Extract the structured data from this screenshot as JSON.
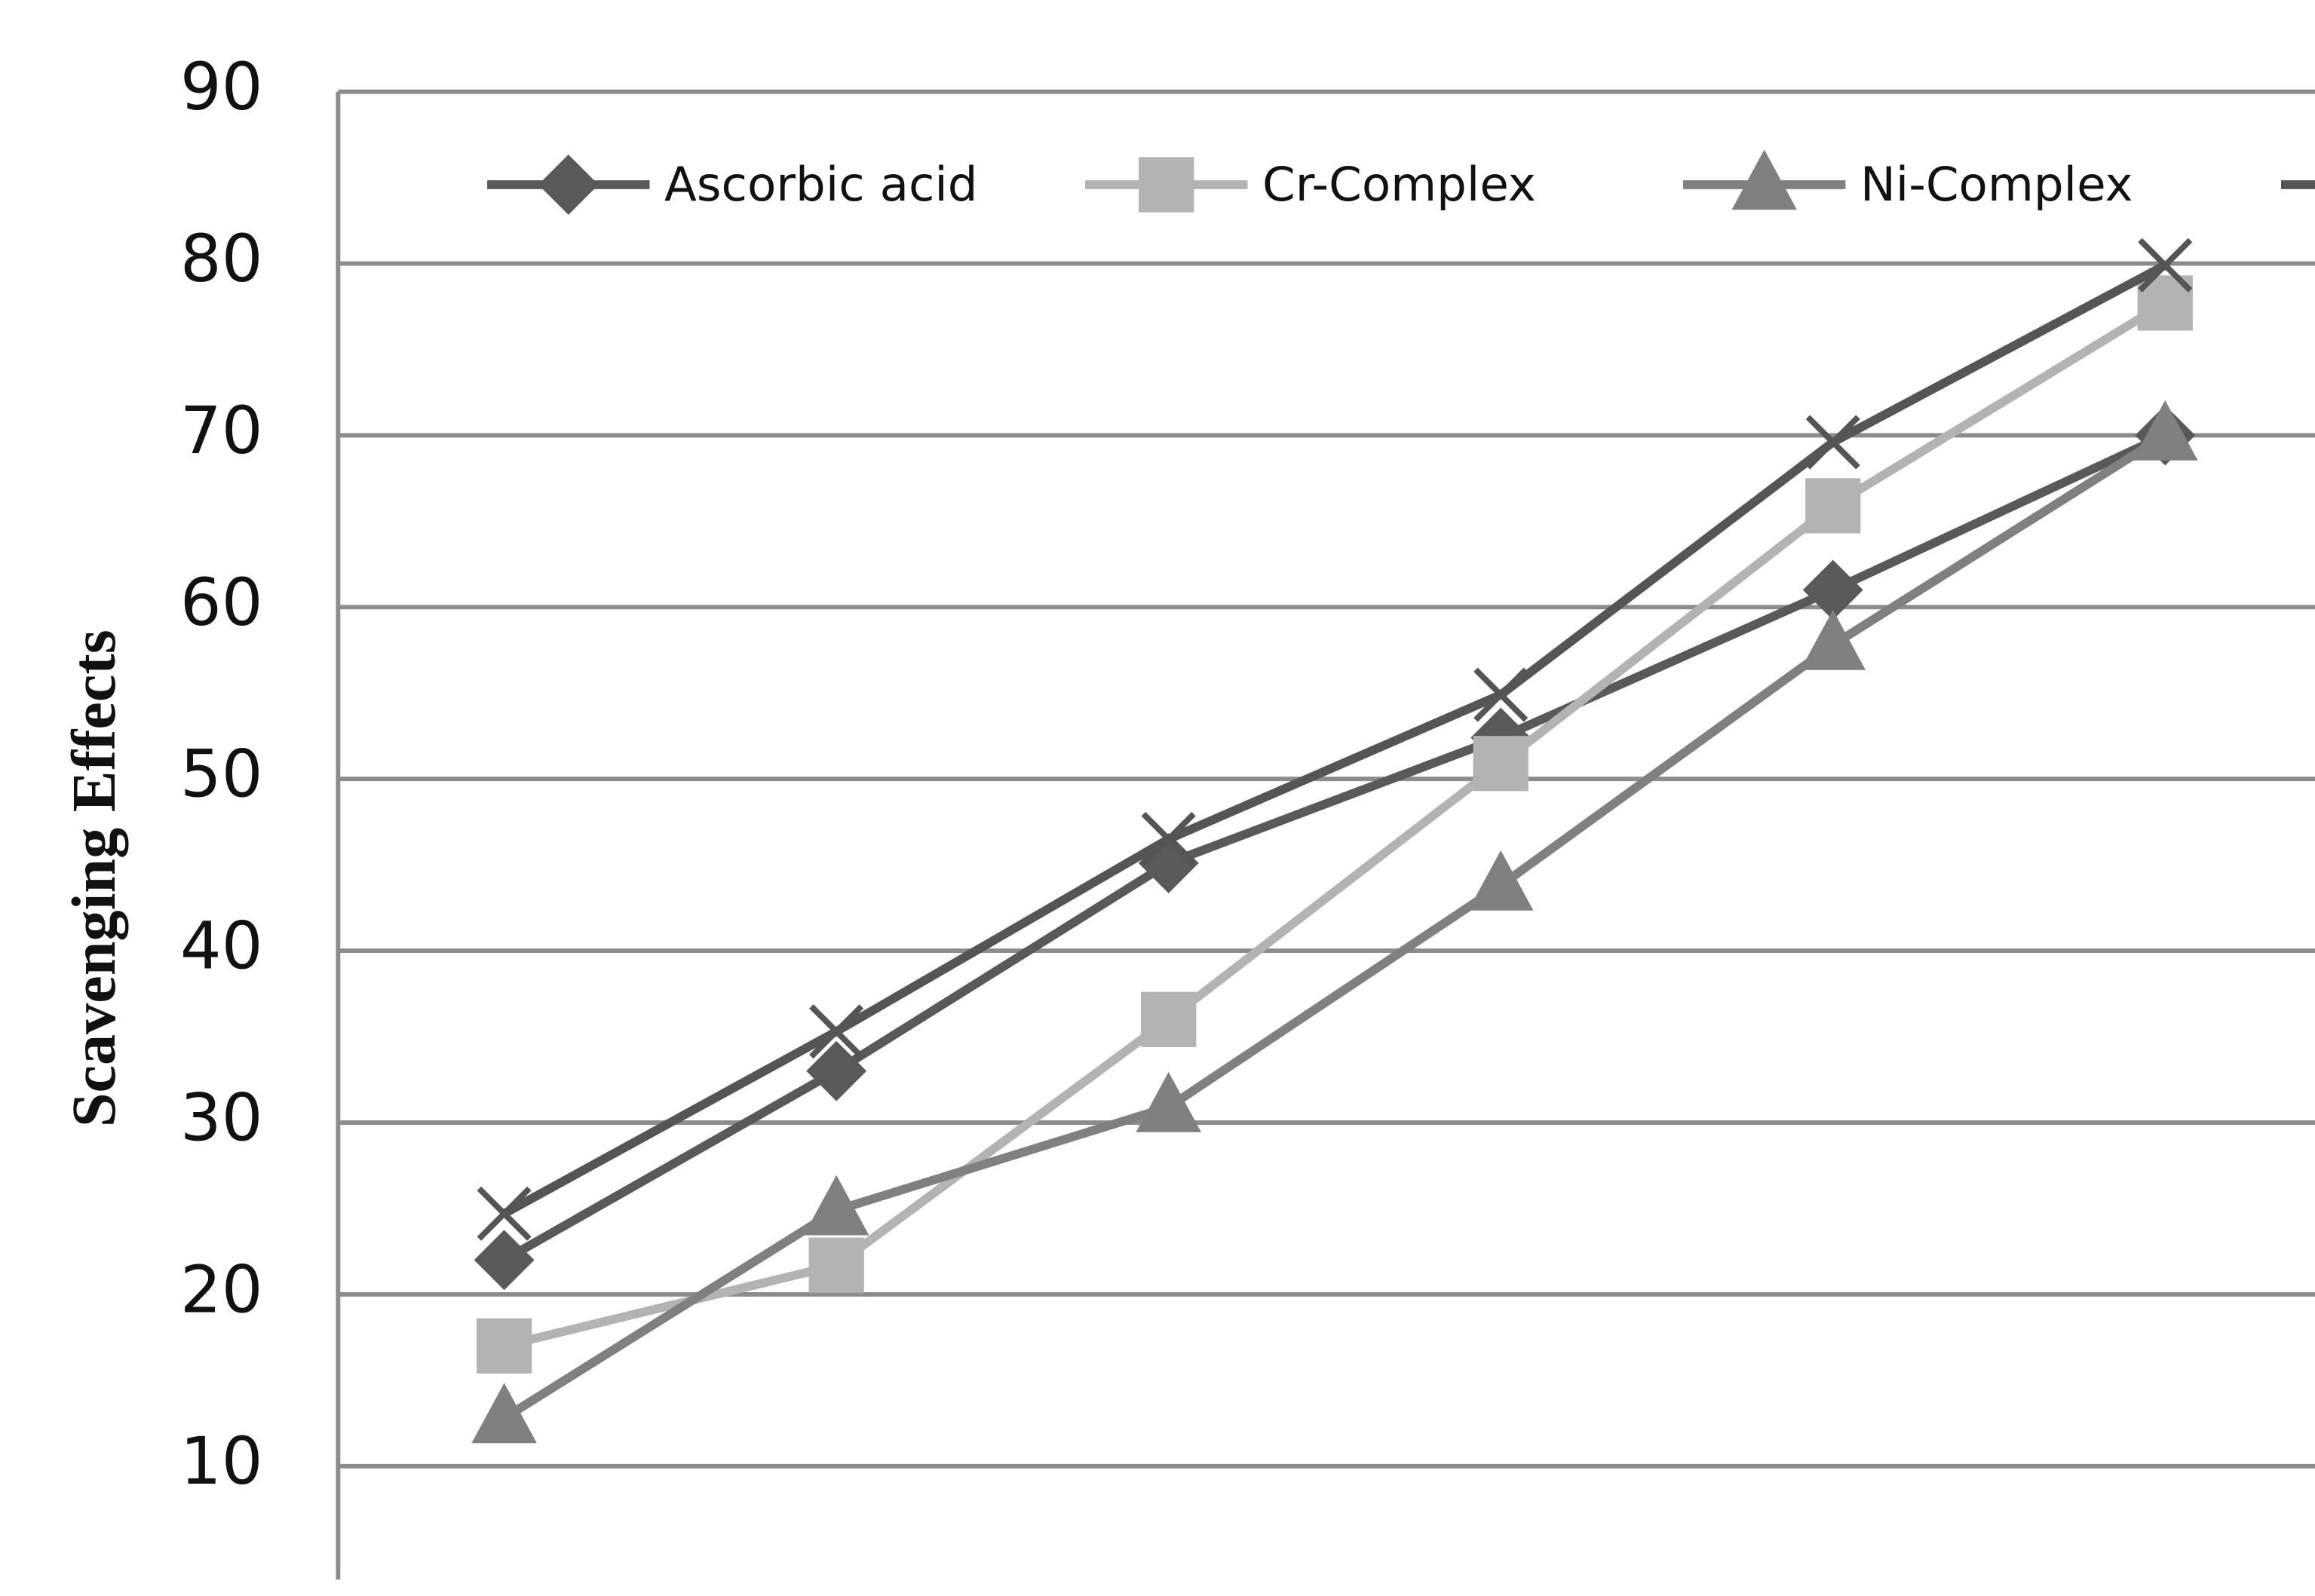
{
  "chart_data": {
    "type": "line",
    "y_label": "Scavenging Effects",
    "categories": [
      null,
      null,
      null,
      null,
      null,
      null
    ],
    "series": [
      {
        "name": "Ascorbic acid",
        "color": "#595959",
        "marker": "diamond",
        "values": [
          22.0,
          33.0,
          45.1,
          52.4,
          61.0,
          70.0
        ]
      },
      {
        "name": "Cr-Complex",
        "color": "#b3b3b3",
        "marker": "square",
        "values": [
          17.0,
          21.7,
          36.0,
          50.9,
          65.9,
          77.7
        ]
      },
      {
        "name": "Ni-Complex",
        "color": "#808080",
        "marker": "triangle",
        "values": [
          12.8,
          24.9,
          30.9,
          43.8,
          57.8,
          70.0
        ]
      },
      {
        "color": "#555555",
        "marker": "x",
        "values": [
          24.7,
          35.3,
          46.5,
          54.9,
          69.6,
          79.9
        ]
      }
    ],
    "ylim": [
      3.4,
      90
    ],
    "yticks": [
      10,
      20,
      30,
      40,
      50,
      60,
      70,
      80,
      90
    ],
    "grid": true,
    "legend": "top"
  }
}
